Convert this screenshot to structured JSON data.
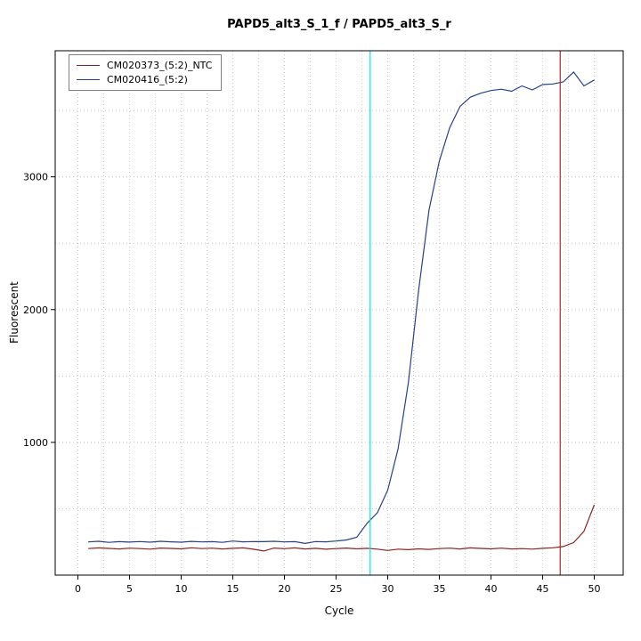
{
  "chart_data": {
    "type": "line",
    "title": "PAPD5_alt3_S_1_f / PAPD5_alt3_S_r",
    "xlabel": "Cycle",
    "ylabel": "Fluorescent",
    "xlim": [
      -2.2,
      52.8
    ],
    "ylim": [
      0,
      3950
    ],
    "x_ticks": [
      0,
      5,
      10,
      15,
      20,
      25,
      30,
      35,
      40,
      45,
      50
    ],
    "y_ticks": [
      1000,
      2000,
      3000
    ],
    "grid": {
      "on": true,
      "x_step": 2.5,
      "y_step": 500,
      "color": "#c8c8c8"
    },
    "legend_position": "top-left",
    "x": [
      1,
      2,
      3,
      4,
      5,
      6,
      7,
      8,
      9,
      10,
      11,
      12,
      13,
      14,
      15,
      16,
      17,
      18,
      19,
      20,
      21,
      22,
      23,
      24,
      25,
      26,
      27,
      28,
      29,
      30,
      31,
      32,
      33,
      34,
      35,
      36,
      37,
      38,
      39,
      40,
      41,
      42,
      43,
      44,
      45,
      46,
      47,
      48,
      49,
      50
    ],
    "series": [
      {
        "name": "CM020373_(5:2)_NTC",
        "color": "#8b2323",
        "values": [
          200,
          205,
          201,
          197,
          203,
          200,
          196,
          204,
          201,
          198,
          206,
          200,
          203,
          197,
          202,
          205,
          195,
          182,
          204,
          199,
          205,
          197,
          202,
          195,
          200,
          204,
          198,
          202,
          196,
          186,
          196,
          192,
          198,
          194,
          200,
          203,
          197,
          205,
          201,
          198,
          203,
          197,
          200,
          196,
          202,
          206,
          215,
          245,
          330,
          530
        ]
      },
      {
        "name": "CM020416_(5:2)",
        "color": "#27408b",
        "values": [
          250,
          255,
          247,
          252,
          249,
          253,
          248,
          255,
          251,
          248,
          254,
          250,
          252,
          247,
          257,
          251,
          253,
          252,
          255,
          250,
          252,
          239,
          253,
          251,
          257,
          265,
          285,
          390,
          470,
          640,
          950,
          1450,
          2150,
          2750,
          3120,
          3370,
          3530,
          3600,
          3630,
          3650,
          3660,
          3645,
          3685,
          3655,
          3695,
          3700,
          3715,
          3790,
          3685,
          3730
        ]
      }
    ],
    "vlines": [
      {
        "x": 28.3,
        "color": "#00e5ee"
      },
      {
        "x": 46.7,
        "color": "#a52a2a"
      }
    ]
  }
}
